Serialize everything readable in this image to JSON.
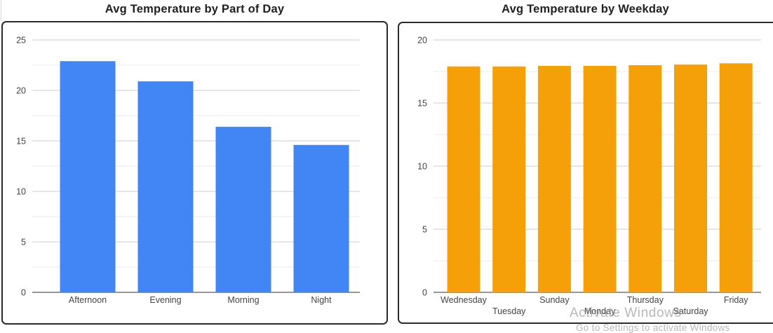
{
  "page": {
    "background": "#ffffff"
  },
  "theme": {
    "title_color": "#1f1f1f",
    "axis_text_color": "#444444",
    "gridline_major_color": "#cccccc",
    "gridline_minor_color": "#ebebeb",
    "baseline_color": "#757575",
    "card_border_color": "#2b2b2b"
  },
  "chart_data": [
    {
      "type": "bar",
      "title": "Avg Temperature by Part of Day",
      "categories": [
        "Afternoon",
        "Evening",
        "Morning",
        "Night"
      ],
      "values": [
        22.9,
        20.9,
        16.4,
        14.6
      ],
      "bar_color": "#4285F4",
      "ylim": [
        0,
        25
      ],
      "yticks": [
        0,
        5,
        10,
        15,
        20,
        25
      ],
      "ytick_step": 5,
      "minor_gridline_step": 2.5,
      "xlabel": "",
      "ylabel": "",
      "grid": true,
      "legend": "none",
      "stagger_labels": false
    },
    {
      "type": "bar",
      "title": "Avg Temperature by Weekday",
      "categories": [
        "Wednesday",
        "Tuesday",
        "Sunday",
        "Monday",
        "Thursday",
        "Saturday",
        "Friday"
      ],
      "values": [
        17.9,
        17.9,
        17.95,
        17.95,
        18.0,
        18.05,
        18.15
      ],
      "bar_color": "#F5A009",
      "ylim": [
        0,
        20
      ],
      "yticks": [
        0,
        5,
        10,
        15,
        20
      ],
      "ytick_step": 5,
      "minor_gridline_step": 2.5,
      "xlabel": "",
      "ylabel": "",
      "grid": true,
      "legend": "none",
      "stagger_labels": true
    }
  ],
  "watermark": {
    "line1": "Activate Windows",
    "line2": "Go to Settings to activate Windows"
  }
}
